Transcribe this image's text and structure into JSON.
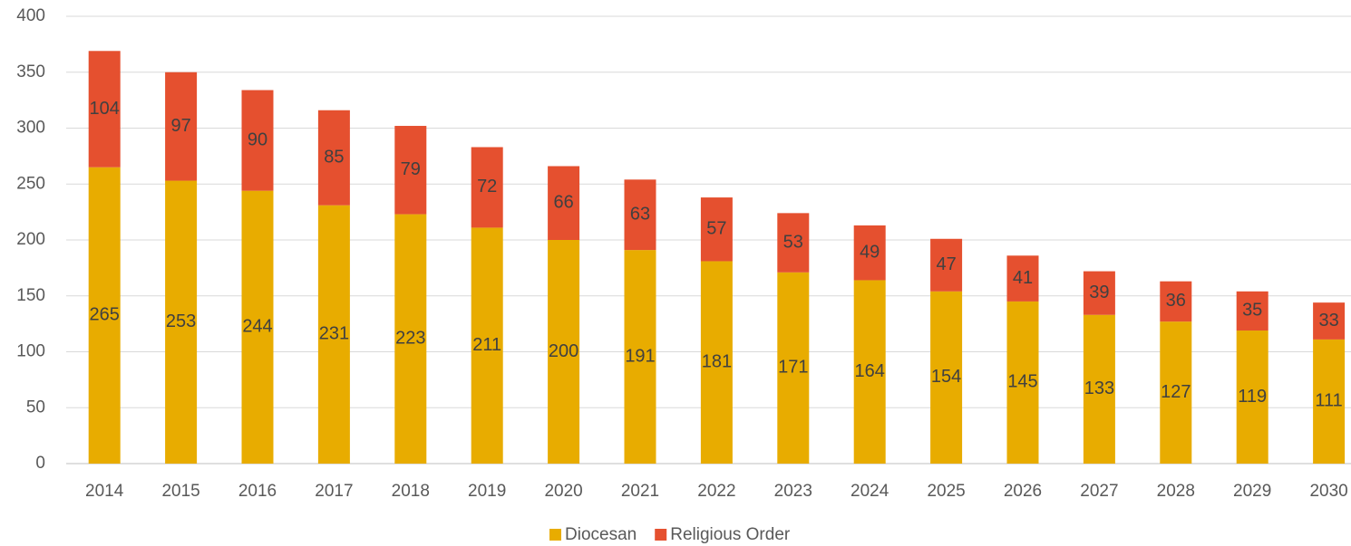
{
  "chart_data": {
    "type": "stacked_bar",
    "categories": [
      "2014",
      "2015",
      "2016",
      "2017",
      "2018",
      "2019",
      "2020",
      "2021",
      "2022",
      "2023",
      "2024",
      "2025",
      "2026",
      "2027",
      "2028",
      "2029",
      "2030"
    ],
    "series": [
      {
        "name": "Diocesan",
        "color": "#e8ac00",
        "values": [
          265,
          253,
          244,
          231,
          223,
          211,
          200,
          191,
          181,
          171,
          164,
          154,
          145,
          133,
          127,
          119,
          111
        ]
      },
      {
        "name": "Religious Order",
        "color": "#e5502f",
        "values": [
          104,
          97,
          90,
          85,
          79,
          72,
          66,
          63,
          57,
          53,
          49,
          47,
          41,
          39,
          36,
          35,
          33
        ]
      }
    ],
    "ylim": [
      0,
      400
    ],
    "yticks": [
      0,
      50,
      100,
      150,
      200,
      250,
      300,
      350,
      400
    ],
    "grid": true,
    "legend": "bottom"
  }
}
